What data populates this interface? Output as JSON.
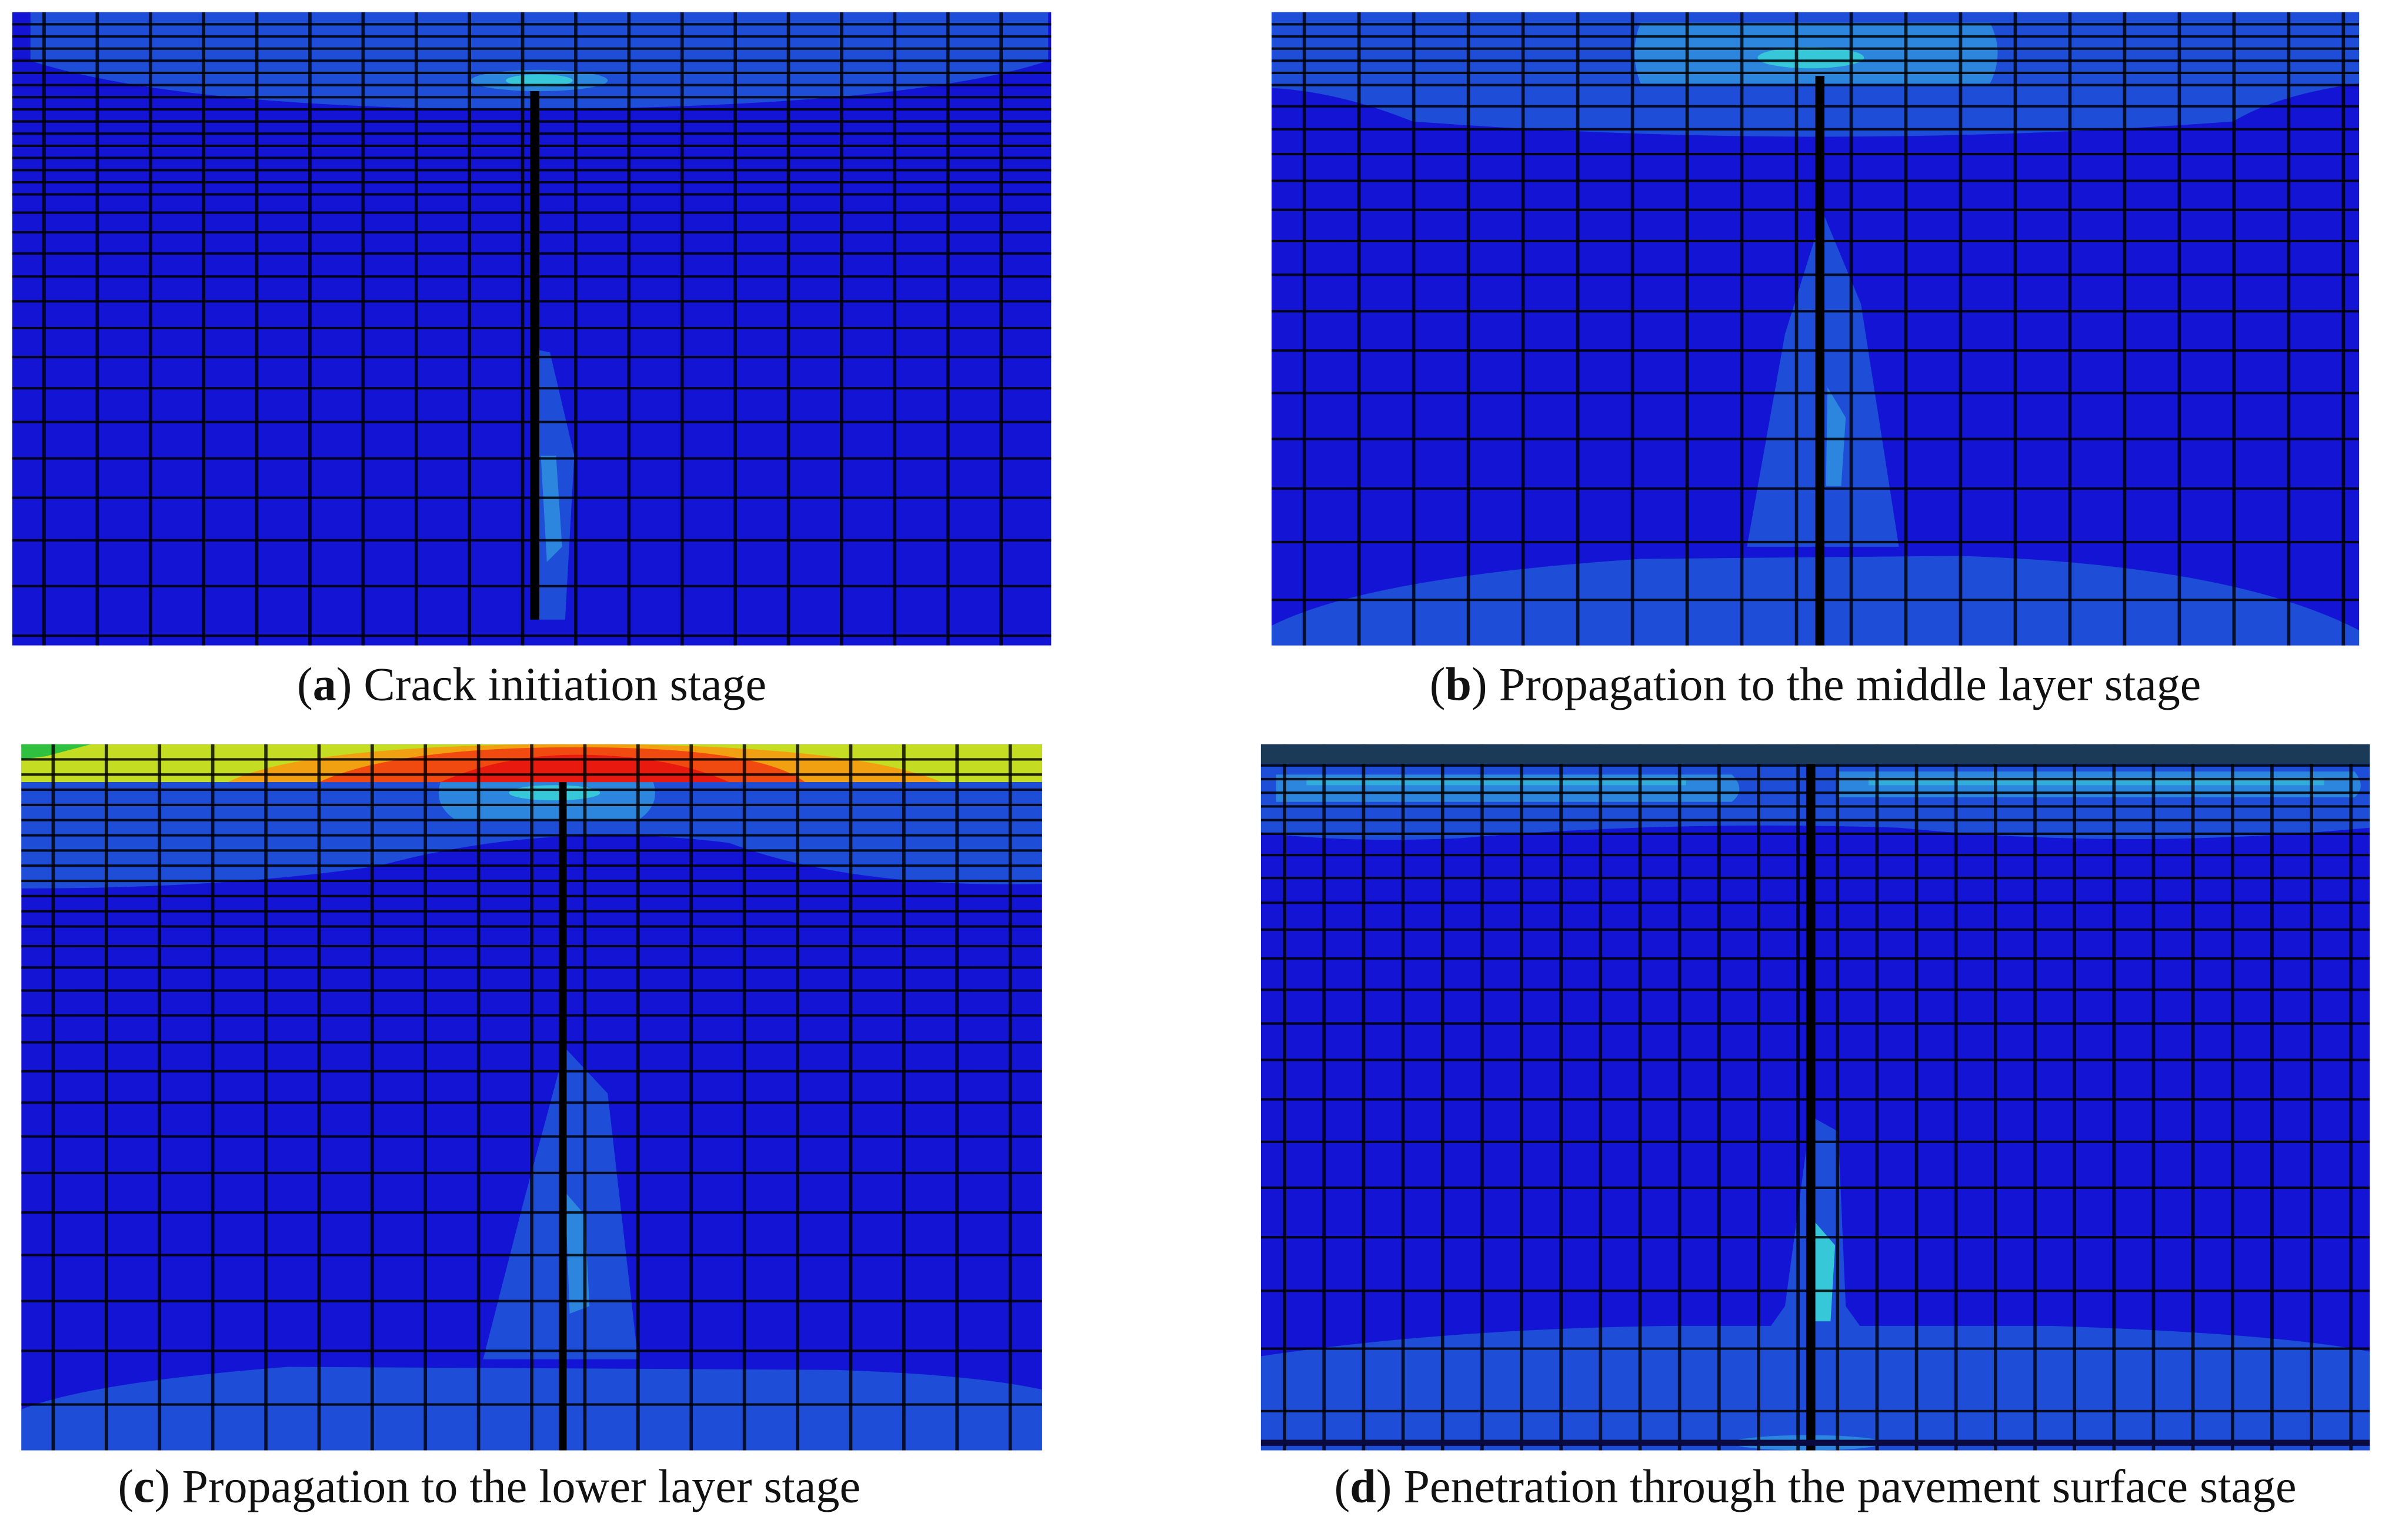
{
  "caption_brackets": [
    "(",
    ")"
  ],
  "panels": [
    {
      "letter": "a",
      "caption": " Crack initiation stage"
    },
    {
      "letter": "b",
      "caption": "  Propagation to the middle layer stage"
    },
    {
      "letter": "c",
      "caption": " Propagation to the lower layer stage"
    },
    {
      "letter": "d",
      "caption": " Penetration through the pavement surface stage"
    }
  ]
}
